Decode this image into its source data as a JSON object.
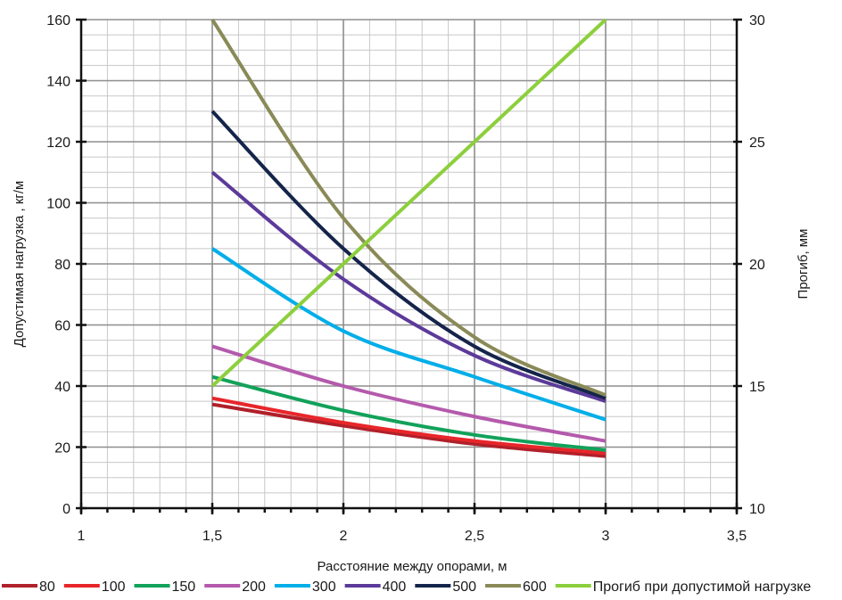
{
  "chart_data": {
    "type": "line",
    "xlabel": "Расстояние между опорами, м",
    "ylabel": "Допустимая нагрузка , кг/м",
    "y2label": "Прогиб, мм",
    "xlim": [
      1,
      3.5
    ],
    "ylim": [
      0,
      160
    ],
    "y2lim": [
      10,
      30
    ],
    "x_ticks": [
      {
        "value": 1,
        "label": "1"
      },
      {
        "value": 1.5,
        "label": "1,5"
      },
      {
        "value": 2,
        "label": "2"
      },
      {
        "value": 2.5,
        "label": "2,5"
      },
      {
        "value": 3,
        "label": "3"
      },
      {
        "value": 3.5,
        "label": "3,5"
      }
    ],
    "y_ticks": [
      {
        "value": 0,
        "label": "0"
      },
      {
        "value": 20,
        "label": "20"
      },
      {
        "value": 40,
        "label": "40"
      },
      {
        "value": 60,
        "label": "60"
      },
      {
        "value": 80,
        "label": "80"
      },
      {
        "value": 100,
        "label": "100"
      },
      {
        "value": 120,
        "label": "120"
      },
      {
        "value": 140,
        "label": "140"
      },
      {
        "value": 160,
        "label": "160"
      }
    ],
    "y2_ticks": [
      {
        "value": 10,
        "label": "10"
      },
      {
        "value": 15,
        "label": "15"
      },
      {
        "value": 20,
        "label": "20"
      },
      {
        "value": 25,
        "label": "25"
      },
      {
        "value": 30,
        "label": "30"
      }
    ],
    "grid": true,
    "legend_position": "bottom",
    "x": [
      1.5,
      2,
      2.5,
      3
    ],
    "series": [
      {
        "name": "80",
        "color": "#b0202a",
        "axis": "left",
        "values": [
          34,
          27,
          21,
          17
        ]
      },
      {
        "name": "100",
        "color": "#e8262a",
        "axis": "left",
        "values": [
          36,
          28,
          22,
          18
        ]
      },
      {
        "name": "150",
        "color": "#12a25a",
        "axis": "left",
        "values": [
          43,
          32,
          24,
          19
        ]
      },
      {
        "name": "200",
        "color": "#b45aac",
        "axis": "left",
        "values": [
          53,
          40,
          30,
          22
        ]
      },
      {
        "name": "300",
        "color": "#00aee8",
        "axis": "left",
        "values": [
          85,
          58,
          43,
          29
        ]
      },
      {
        "name": "400",
        "color": "#5c3a9a",
        "axis": "left",
        "values": [
          110,
          75,
          50,
          35
        ]
      },
      {
        "name": "500",
        "color": "#14244a",
        "axis": "left",
        "values": [
          130,
          85,
          53,
          36
        ]
      },
      {
        "name": "600",
        "color": "#8a8a58",
        "axis": "left",
        "values": [
          160,
          95,
          56,
          37
        ]
      },
      {
        "name": "Прогиб при допустимой нагрузке",
        "color": "#8ccf3c",
        "axis": "right",
        "values": [
          15,
          20,
          25,
          30
        ]
      }
    ]
  }
}
